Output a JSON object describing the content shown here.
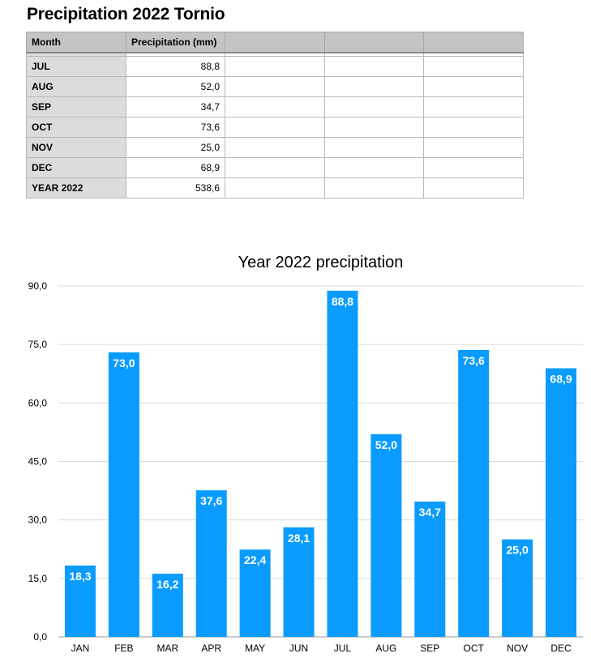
{
  "sheet": {
    "title": "Precipitation 2022 Tornio",
    "headers": [
      "Month",
      "Precipitation (mm)",
      "",
      "",
      ""
    ],
    "rows": [
      {
        "month": "JUL",
        "value": "88,8"
      },
      {
        "month": "AUG",
        "value": "52,0"
      },
      {
        "month": "SEP",
        "value": "34,7"
      },
      {
        "month": "OCT",
        "value": "73,6"
      },
      {
        "month": "NOV",
        "value": "25,0"
      },
      {
        "month": "DEC",
        "value": "68,9"
      },
      {
        "month": "YEAR 2022",
        "value": "538,6"
      }
    ]
  },
  "chart_data": {
    "type": "bar",
    "title": "Year 2022 precipitation",
    "categories": [
      "JAN",
      "FEB",
      "MAR",
      "APR",
      "MAY",
      "JUN",
      "JUL",
      "AUG",
      "SEP",
      "OCT",
      "NOV",
      "DEC"
    ],
    "values": [
      18.3,
      73.0,
      16.2,
      37.6,
      22.4,
      28.1,
      88.8,
      52.0,
      34.7,
      73.6,
      25.0,
      68.9
    ],
    "value_labels": [
      "18,3",
      "73,0",
      "16,2",
      "37,6",
      "22,4",
      "28,1",
      "88,8",
      "52,0",
      "34,7",
      "73,6",
      "25,0",
      "68,9"
    ],
    "yticks": [
      0,
      15,
      30,
      45,
      60,
      75,
      90
    ],
    "ytick_labels": [
      "0,0",
      "15,0",
      "30,0",
      "45,0",
      "60,0",
      "75,0",
      "90,0"
    ],
    "ylim": [
      0,
      90
    ],
    "xlabel": "",
    "ylabel": "",
    "grid": true,
    "bar_color": "#0a9bff"
  }
}
